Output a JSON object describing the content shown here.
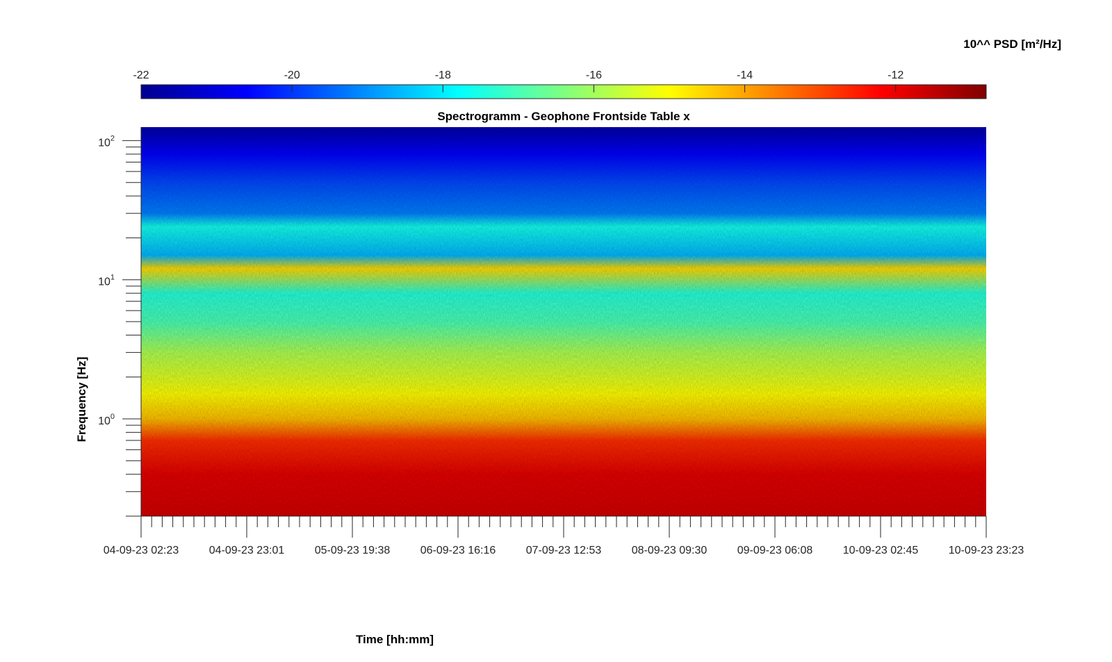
{
  "chart_data": {
    "type": "heatmap",
    "title": "Spectrogramm - Geophone Frontside Table x",
    "xlabel": "Time [hh:mm]",
    "ylabel": "Frequency [Hz]",
    "y_scale": "log",
    "ylim": [
      0.2,
      125
    ],
    "y_ticks": [
      {
        "value": 1,
        "base": "10",
        "exp": "0"
      },
      {
        "value": 10,
        "base": "10",
        "exp": "1"
      },
      {
        "value": 100,
        "base": "10",
        "exp": "2"
      }
    ],
    "x_range": [
      "04-09-23 02:23",
      "10-09-23 23:23"
    ],
    "x_ticks": [
      "04-09-23 02:23",
      "04-09-23 23:01",
      "05-09-23 19:38",
      "06-09-23 16:16",
      "07-09-23 12:53",
      "08-09-23 09:30",
      "09-09-23 06:08",
      "10-09-23 02:45",
      "10-09-23 23:23"
    ],
    "colorbar": {
      "label": "10^^ PSD [m²/Hz]",
      "colormap": "jet",
      "range": [
        -22,
        -10.8
      ],
      "ticks": [
        "-22",
        "-20",
        "-18",
        "-16",
        "-14",
        "-12"
      ],
      "tick_values": [
        -22,
        -20,
        -18,
        -16,
        -14,
        -12
      ],
      "position": "top"
    },
    "grid": false,
    "bands": [
      {
        "freq_hz": 120,
        "log10_psd": -21.6
      },
      {
        "freq_hz": 80,
        "log10_psd": -20.6
      },
      {
        "freq_hz": 50,
        "log10_psd": -19.8
      },
      {
        "freq_hz": 30,
        "log10_psd": -19.2
      },
      {
        "freq_hz": 24,
        "log10_psd": -17.6
      },
      {
        "freq_hz": 15,
        "log10_psd": -18.6
      },
      {
        "freq_hz": 12,
        "log10_psd": -14.6
      },
      {
        "freq_hz": 8,
        "log10_psd": -17.4
      },
      {
        "freq_hz": 5,
        "log10_psd": -17.0
      },
      {
        "freq_hz": 3,
        "log10_psd": -15.9
      },
      {
        "freq_hz": 1.5,
        "log10_psd": -15.0
      },
      {
        "freq_hz": 1.0,
        "log10_psd": -14.3
      },
      {
        "freq_hz": 0.7,
        "log10_psd": -12.7
      },
      {
        "freq_hz": 0.4,
        "log10_psd": -11.9
      },
      {
        "freq_hz": 0.2,
        "log10_psd": -11.7
      }
    ]
  }
}
